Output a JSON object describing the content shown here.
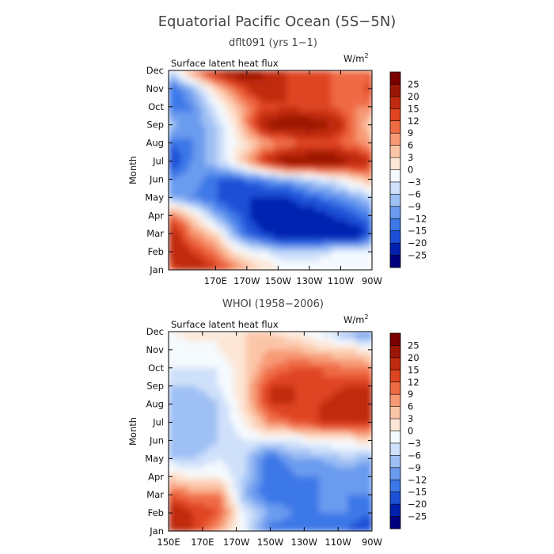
{
  "title": "Equatorial Pacific Ocean (5S−5N)",
  "chart_data": [
    {
      "type": "heatmap",
      "subtitle": "dflt091 (yrs 1−1)",
      "variable": "Surface latent heat flux",
      "units": "W/m",
      "units_sup": "2",
      "xlabel": "",
      "ylabel": "Month",
      "x_ticks": [
        "170E",
        "170W",
        "150W",
        "130W",
        "110W",
        "90W"
      ],
      "x_range_deg_east": [
        140,
        270
      ],
      "y_ticks": [
        "Jan",
        "Feb",
        "Mar",
        "Apr",
        "May",
        "Jun",
        "Jul",
        "Aug",
        "Sep",
        "Oct",
        "Nov",
        "Dec"
      ],
      "x_grid_deg_east": [
        140,
        155,
        170,
        185,
        200,
        215,
        230,
        245,
        260,
        270
      ],
      "values": [
        [
          12,
          20,
          15,
          9,
          3,
          0,
          0,
          0,
          0,
          0
        ],
        [
          18,
          15,
          9,
          0,
          -3,
          -6,
          -6,
          -3,
          -3,
          -3
        ],
        [
          20,
          9,
          3,
          -12,
          -20,
          -25,
          -25,
          -25,
          -25,
          -15
        ],
        [
          12,
          3,
          -9,
          -15,
          -25,
          -25,
          -25,
          -20,
          -15,
          -12
        ],
        [
          -9,
          -12,
          -15,
          -20,
          -20,
          -20,
          -15,
          -12,
          -9,
          -6
        ],
        [
          -12,
          -9,
          -15,
          -15,
          -12,
          -9,
          -6,
          -3,
          3,
          6
        ],
        [
          -20,
          -12,
          -6,
          3,
          15,
          25,
          25,
          25,
          20,
          15
        ],
        [
          -15,
          -12,
          -6,
          0,
          6,
          9,
          12,
          12,
          9,
          6
        ],
        [
          -6,
          -12,
          -6,
          3,
          20,
          25,
          25,
          20,
          9,
          3
        ],
        [
          -15,
          -12,
          -3,
          6,
          12,
          15,
          12,
          12,
          9,
          9
        ],
        [
          -15,
          -9,
          3,
          12,
          20,
          15,
          12,
          12,
          9,
          15
        ],
        [
          -6,
          9,
          20,
          25,
          20,
          15,
          12,
          12,
          9,
          12
        ]
      ]
    },
    {
      "type": "heatmap",
      "subtitle": "WHOI (1958−2006)",
      "variable": "Surface latent heat flux",
      "units": "W/m",
      "units_sup": "2",
      "xlabel": "",
      "ylabel": "Month",
      "x_ticks": [
        "150E",
        "170E",
        "170W",
        "150W",
        "130W",
        "110W",
        "90W"
      ],
      "x_range_deg_east": [
        150,
        270
      ],
      "y_ticks": [
        "Jan",
        "Feb",
        "Mar",
        "Apr",
        "May",
        "Jun",
        "Jul",
        "Aug",
        "Sep",
        "Oct",
        "Nov",
        "Dec"
      ],
      "x_grid_deg_east": [
        150,
        165,
        180,
        195,
        210,
        225,
        240,
        255,
        270
      ],
      "values": [
        [
          15,
          15,
          6,
          -3,
          -15,
          -15,
          -15,
          -15,
          -20
        ],
        [
          20,
          15,
          12,
          -3,
          -9,
          -12,
          -12,
          -12,
          -15
        ],
        [
          12,
          9,
          9,
          -9,
          -15,
          -15,
          -12,
          -12,
          -12
        ],
        [
          3,
          0,
          0,
          -6,
          -15,
          -12,
          -12,
          -12,
          -12
        ],
        [
          -6,
          -6,
          -3,
          -6,
          -15,
          -9,
          -9,
          -6,
          -9
        ],
        [
          -9,
          -9,
          -6,
          -3,
          -3,
          -3,
          0,
          0,
          3
        ],
        [
          -6,
          -9,
          -6,
          0,
          9,
          12,
          15,
          15,
          15
        ],
        [
          -6,
          -9,
          -6,
          3,
          15,
          15,
          15,
          18,
          18
        ],
        [
          -6,
          -6,
          -3,
          3,
          15,
          15,
          12,
          15,
          15
        ],
        [
          -3,
          -3,
          -3,
          3,
          9,
          12,
          12,
          9,
          9
        ],
        [
          -3,
          -3,
          0,
          3,
          6,
          6,
          3,
          3,
          0
        ],
        [
          0,
          3,
          0,
          3,
          3,
          0,
          -3,
          -9,
          -15
        ]
      ]
    }
  ],
  "colorbar": {
    "labels": [
      "25",
      "20",
      "15",
      "12",
      "9",
      "6",
      "3",
      "0",
      "−3",
      "−6",
      "−9",
      "−12",
      "−15",
      "−20",
      "−25"
    ],
    "levels": [
      -25,
      -20,
      -15,
      -12,
      -9,
      -6,
      -3,
      0,
      3,
      6,
      9,
      12,
      15,
      20,
      25
    ],
    "colors": [
      "#00007f",
      "#0020b0",
      "#1a4fd6",
      "#3c78e8",
      "#6a9bee",
      "#9fc0f4",
      "#cfe0fa",
      "#f5fafe",
      "#fde6d6",
      "#fbc6a8",
      "#f79a75",
      "#ef6b44",
      "#df4420",
      "#c02a0e",
      "#9c1606",
      "#7a0000"
    ]
  }
}
